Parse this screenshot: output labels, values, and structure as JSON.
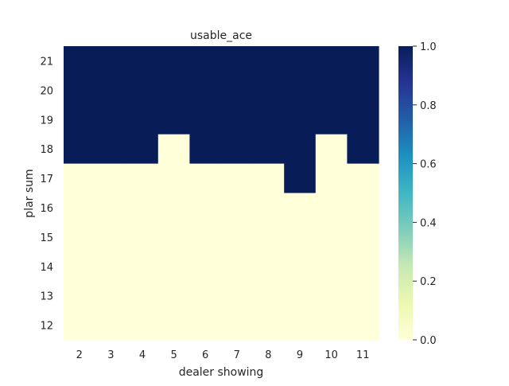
{
  "chart_data": {
    "type": "heatmap",
    "title": "usable_ace",
    "xlabel": "dealer showing",
    "ylabel": "plar sum",
    "x_categories": [
      "2",
      "3",
      "4",
      "5",
      "6",
      "7",
      "8",
      "9",
      "10",
      "11"
    ],
    "y_categories_top_to_bottom": [
      "21",
      "20",
      "19",
      "18",
      "17",
      "16",
      "15",
      "14",
      "13",
      "12"
    ],
    "values_top_to_bottom": [
      [
        1,
        1,
        1,
        1,
        1,
        1,
        1,
        1,
        1,
        1
      ],
      [
        1,
        1,
        1,
        1,
        1,
        1,
        1,
        1,
        1,
        1
      ],
      [
        1,
        1,
        1,
        1,
        1,
        1,
        1,
        1,
        1,
        1
      ],
      [
        1,
        1,
        1,
        0,
        1,
        1,
        1,
        1,
        0,
        1
      ],
      [
        0,
        0,
        0,
        0,
        0,
        0,
        0,
        1,
        0,
        0
      ],
      [
        0,
        0,
        0,
        0,
        0,
        0,
        0,
        0,
        0,
        0
      ],
      [
        0,
        0,
        0,
        0,
        0,
        0,
        0,
        0,
        0,
        0
      ],
      [
        0,
        0,
        0,
        0,
        0,
        0,
        0,
        0,
        0,
        0
      ],
      [
        0,
        0,
        0,
        0,
        0,
        0,
        0,
        0,
        0,
        0
      ],
      [
        0,
        0,
        0,
        0,
        0,
        0,
        0,
        0,
        0,
        0
      ]
    ],
    "colorbar": {
      "colormap": "YlGnBu",
      "range": [
        0.0,
        1.0
      ],
      "ticks": [
        "0.0",
        "0.2",
        "0.4",
        "0.6",
        "0.8",
        "1.0"
      ],
      "stops": [
        "#ffffd9",
        "#edf8b1",
        "#c7e9b4",
        "#7fcdbb",
        "#41b6c4",
        "#1d91c0",
        "#225ea8",
        "#253494",
        "#081d58"
      ]
    },
    "grid": false
  }
}
